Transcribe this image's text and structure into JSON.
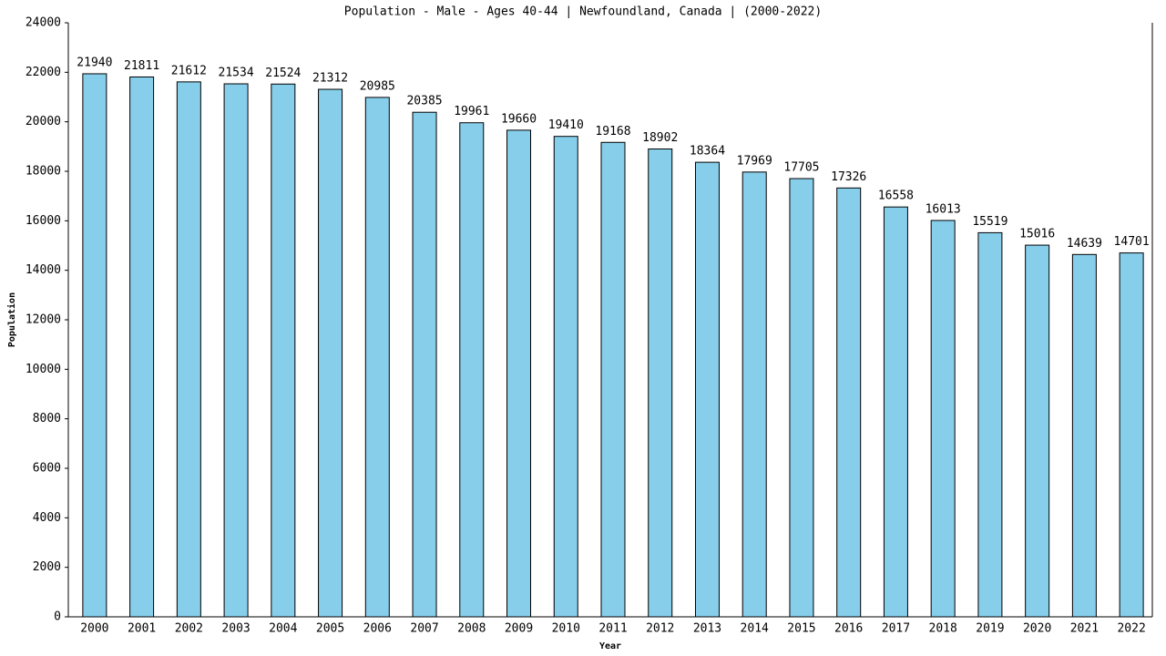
{
  "chart_data": {
    "type": "bar",
    "title": "Population - Male - Ages 40-44 | Newfoundland, Canada |  (2000-2022)",
    "x_label": "Year",
    "y_label": "Population",
    "categories": [
      "2000",
      "2001",
      "2002",
      "2003",
      "2004",
      "2005",
      "2006",
      "2007",
      "2008",
      "2009",
      "2010",
      "2011",
      "2012",
      "2013",
      "2014",
      "2015",
      "2016",
      "2017",
      "2018",
      "2019",
      "2020",
      "2021",
      "2022"
    ],
    "values": [
      21940,
      21811,
      21612,
      21534,
      21524,
      21312,
      20985,
      20385,
      19961,
      19660,
      19410,
      19168,
      18902,
      18364,
      17969,
      17705,
      17326,
      16558,
      16013,
      15519,
      15016,
      14639,
      14701
    ],
    "color": "#87ceeb",
    "ylim": [
      0,
      24000
    ],
    "yticks": [
      0,
      2000,
      4000,
      6000,
      8000,
      10000,
      12000,
      14000,
      16000,
      18000,
      20000,
      22000,
      24000
    ],
    "grid": false
  }
}
